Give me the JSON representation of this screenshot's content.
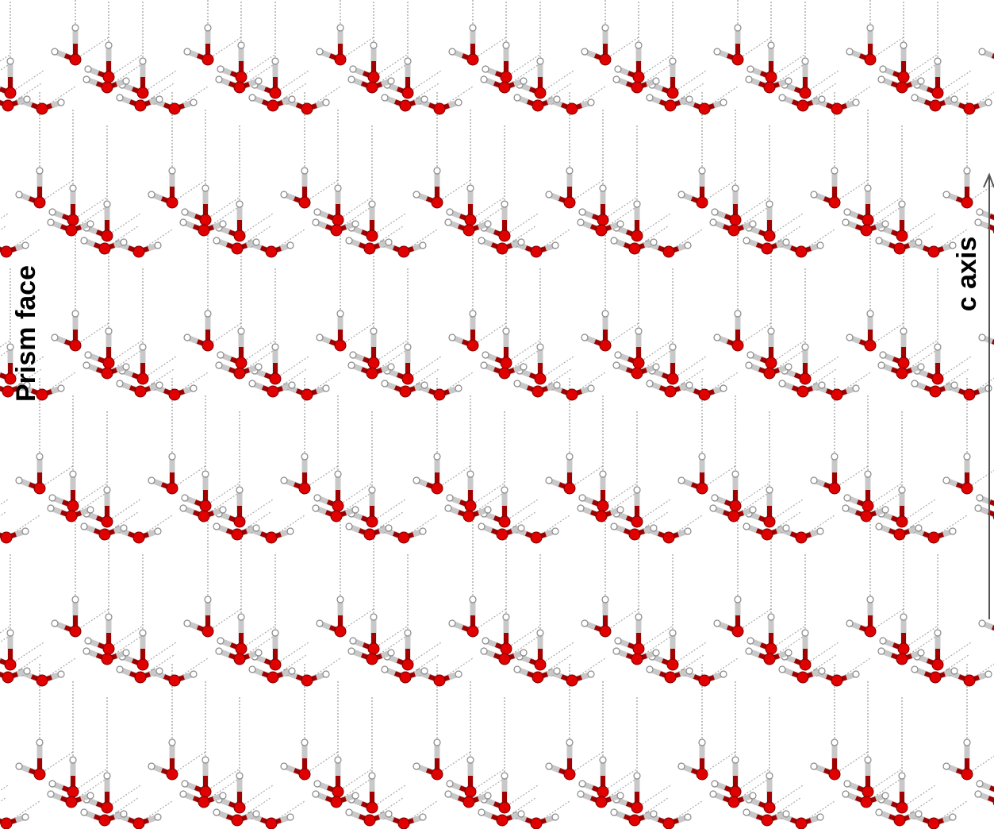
{
  "labels": {
    "left": "Prism face",
    "right": "c axis"
  }
}
